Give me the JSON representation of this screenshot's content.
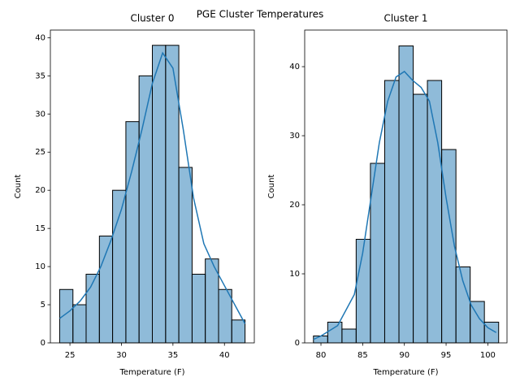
{
  "title": "PGE Cluster Temperatures",
  "chart_data": [
    {
      "type": "histogram",
      "title": "Cluster 0",
      "x_label": "Temperature (F)",
      "y_label": "Count",
      "color": "#1f77b4",
      "bins": [
        24,
        25.29,
        26.57,
        27.86,
        29.14,
        30.43,
        31.71,
        33,
        34.29,
        35.57,
        36.86,
        38.14,
        39.43,
        40.71,
        42
      ],
      "values": [
        7,
        5,
        9,
        14,
        20,
        29,
        35,
        39,
        39,
        23,
        9,
        11,
        7,
        3
      ],
      "kde": {
        "x": [
          24,
          25,
          26,
          27,
          28,
          29,
          30,
          31,
          32,
          33,
          34,
          35,
          36,
          37,
          38,
          39,
          40,
          41,
          42
        ],
        "values": [
          3.2,
          4.2,
          5.5,
          7.3,
          10,
          13.5,
          17.5,
          22.5,
          28,
          34,
          38,
          36,
          28,
          19,
          13,
          10,
          7.5,
          5,
          2.5
        ]
      },
      "xlim": [
        23.1,
        42.9
      ],
      "ylim": [
        0,
        41
      ],
      "xticks": [
        25,
        30,
        35,
        40
      ],
      "yticks": [
        0,
        5,
        10,
        15,
        20,
        25,
        30,
        35,
        40
      ]
    },
    {
      "type": "histogram",
      "title": "Cluster 1",
      "x_label": "Temperature (F)",
      "y_label": "Count",
      "color": "#1f77b4",
      "bins": [
        79.1,
        80.81,
        82.52,
        84.22,
        85.93,
        87.64,
        89.35,
        91.06,
        92.76,
        94.47,
        96.18,
        97.89,
        99.59,
        101.3
      ],
      "values": [
        1,
        3,
        2,
        15,
        26,
        38,
        43,
        36,
        38,
        28,
        11,
        6,
        3
      ],
      "kde": {
        "x": [
          79.1,
          80,
          82,
          84,
          85,
          86,
          87,
          88,
          89,
          90,
          91,
          92,
          93,
          94,
          95,
          96,
          97,
          98,
          99,
          100,
          101
        ],
        "values": [
          0.5,
          1,
          2.5,
          7,
          13,
          21,
          29,
          35,
          38.5,
          39.3,
          38,
          37,
          35,
          29,
          21,
          14,
          9,
          5.5,
          3.5,
          2.2,
          1.5
        ]
      },
      "xlim": [
        78.05,
        102.3
      ],
      "ylim": [
        0,
        45.3
      ],
      "xticks": [
        80,
        85,
        90,
        95,
        100
      ],
      "yticks": [
        0,
        10,
        20,
        30,
        40
      ]
    }
  ]
}
